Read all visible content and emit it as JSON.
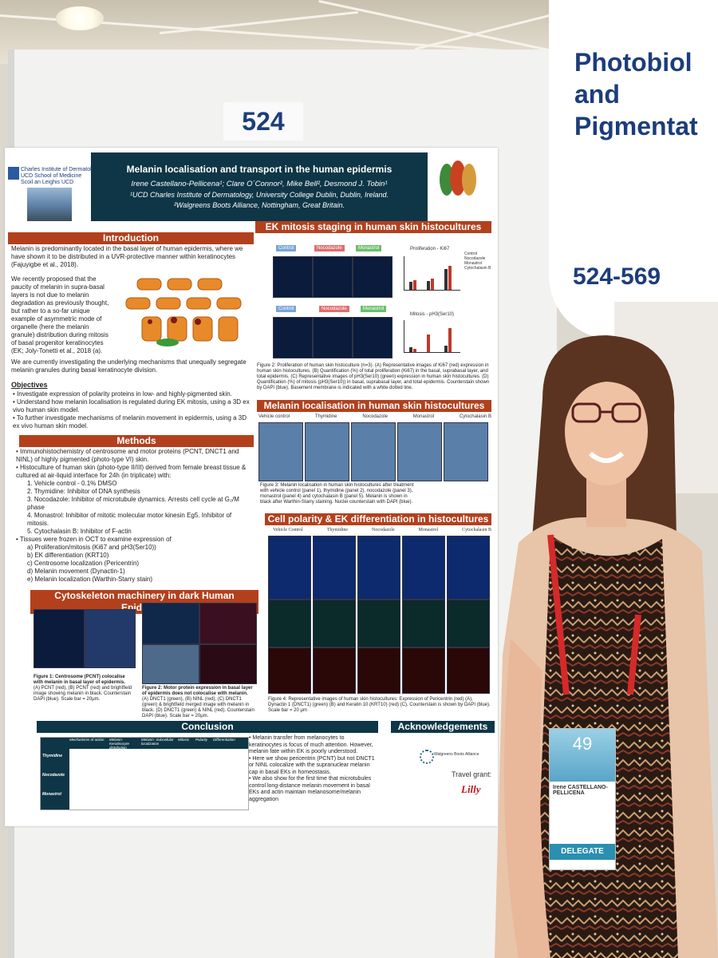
{
  "board_number": "524",
  "sign": {
    "line1": "Photobiol",
    "line2": "and",
    "line3": "Pigmentat",
    "range": "524-569"
  },
  "poster": {
    "logo_line1": "Charles Institute of Dermatology",
    "logo_line2": "UCD School of Medicine",
    "logo_line3": "Scoil an Leighis UCD",
    "title": "Melanin localisation and transport in the human epidermis",
    "authors": "Irene Castellano-Pellicena¹; Clare O´Connor², Mike Bell², Desmond J. Tobin¹",
    "affil1": "¹UCD Charles Institute of Dermatology, University College Dublin, Dublin, Ireland.",
    "affil2": "²Walgreens Boots Alliance, Nottingham, Great Britain.",
    "intro_h": "Introduction",
    "intro_p1": "Melanin is predominantly located in the basal layer of human epidermis, where we have shown it to be distributed in a UVR-protective manner within keratinocytes (Fajuyigbe et al., 2018).",
    "intro_p2": "We recently proposed that the paucity of melanin in supra-basal layers is not due to melanin degradation as previously thought, but rather to a so-far unique example of asymmetric mode of organelle (here the melanin granule) distribution during mitosis of basal progenitor keratinocytes (EK; Joly-Tonetti et al., 2018 (a).",
    "intro_p3": "We are currently investigating the underlying mechanisms that unequally segregate melanin granules during basal keratinocyte division.",
    "objectives_h": "Objectives",
    "obj1": "Investigate expression of polarity proteins in low- and highly-pigmented skin.",
    "obj2": "Understand how melanin localisation is regulated during EK mitosis, using a 3D ex vivo human skin model.",
    "obj3": "To further investigate mechanisms of melanin movement in epidermis, using a 3D ex vivo human skin model.",
    "methods_h": "Methods",
    "m1": "Immunohistochemistry of centrosome and motor proteins (PCNT, DNCT1 and NINL) of highly pigmented (photo-type VI) skin.",
    "m2": "Histoculture of human skin (photo-type II/III) derived from female breast tissue & cultured at air-liquid interface for 24h (in triplicate) with:",
    "m2_1": "1.   Vehicle control - 0.1% DMSO",
    "m2_2": "2.   Thymidine: Inhibitor of DNA synthesis",
    "m2_3": "3.   Nocodazole: Inhibitor of microtubule dynamics. Arrests cell cycle at G₂/M phase",
    "m2_4": "4.   Monastrol: Inhibitor of mitotic molecular motor kinesin Eg5. Inhibitor of mitosis.",
    "m2_5": "5.   Cytochalasin B: Inhibitor of F-actin",
    "m3": "Tissues were frozen in OCT to examine expression of",
    "m3_a": "a)   Proliferation/mitosis (Ki67 and pH3(Ser10))",
    "m3_b": "b)   EK differentiation (KRT10)",
    "m3_c": "c)   Centrosome localization (Pericentrin)",
    "m3_d": "d)   Melanin movement (Dynactin-1)",
    "m3_e": "e)   Melanin localization (Warthin-Starry stain)",
    "cyto_h": "Cytoskeleton machinery in dark Human Epidermis",
    "fig1": "Figure 1: Centrosome (PCNT) colocalise with melanin in basal layer of epidermis.",
    "fig1b": "(A) PCNT (red), (B) PCNT (red) and brightfield image showing melanin in black. Counterstain DAPI (blue). Scale bar = 20μm.",
    "fig2": "Figure 2: Motor protein expression in basal layer of epidermis does not colocalise with melanin.",
    "fig2b": "(A) DNCT1 (green), (B) NINL (red), (C) DNCT1 (green) & brightfield merged image with melanin in black. (D) DNCT1 (green) & NINL (red). Counterstain DAPI (blue). Scale bar = 20μm.",
    "ek_h": "EK mitosis staging in human skin histocultures",
    "ek_labels": [
      "Control",
      "Nocodazole",
      "Monastrol"
    ],
    "ek_caption": "Figure 2: Proliferation of human skin histoculture (n=3). (A) Representative images of Ki67 (red) expression in human skin histocultures. (B) Quantification (%) of total proliferation (Ki67) in the basal, suprabasal layer, and total epidermis. (C) Representative images of pH3(Ser10) (green) expression in human skin histocultures. (D) Quantification (%) of mitosis (pH3(Ser10)) in basal, suprabasal layer, and total epidermis. Counterstain shown by DAPI (blue). Basement membrane is indicated with a white dotted line.",
    "chart_b_title": "Proliferation - Ki67",
    "chart_d_title": "Mitosis - pH3(Ser10)",
    "legend": [
      "Control",
      "Nocodazole",
      "Monastrol",
      "Cytochalasin B"
    ],
    "ml_h": "Melanin localisation in human skin histocultures",
    "ml_labels": [
      "Vehicle control",
      "Thymidine",
      "Nocodazole",
      "Monastrol",
      "Cytochalasin B"
    ],
    "ml_caption": "Figure 3: Melanin localisation in human skin histocultures after treatment with vehicle control (panel 1), thymidine (panel 2), nocodazole (panel 3), monastrol (panel 4) and cytochalasin B (panel 5). Melanin is shown in black after Warthin-Starry staining. Nuclei counterstain with DAPI (blue).",
    "cp_h": "Cell polarity & EK differentiation in histocultures",
    "cp_labels": [
      "Vehicle Control",
      "Thymidine",
      "Nocodazole",
      "Monastrol",
      "Cytochalasin B"
    ],
    "cp_caption": "Figure 4: Representative images of human skin histocultures: Expression of Pericentrin (red) (A), Dynactin 1 (DNCT1) (green) (B) and Keratin 10 (KRT10) (red) (C). Counterstain is shown by DAPI (blue). Scale bar = 20 μm",
    "concl_h": "Conclusion",
    "concl_table_head": [
      "Mechanisms of action",
      "Melanin-Keratinocyte distribution",
      "Melanin- Subcellular localization",
      "Mitosis",
      "Polarity",
      "Differentiation"
    ],
    "concl_rows": [
      "Thymidine",
      "Nocodazole",
      "Monastrol"
    ],
    "concl_b1": "Melanin transfer from melanocytes to keratinocytes is focus of much attention. However, melanin fate within EK is poorly understood.",
    "concl_b2": "Here we show pericentrin (PCNT) but not DNCT1 or NINL colocalize with the supranuclear melanin cap in basal EKs in homeostasis.",
    "concl_b3": "We also show for the first time that microtubules control long-distance melanin movement in basal EKs and actin maintain melanosome/melanin aggregation",
    "ack_h": "Acknowledgements",
    "ack_company": "Walgreens Boots Alliance",
    "travel": "Travel grant:",
    "lilly": "Lilly"
  },
  "badge": {
    "number": "49",
    "name": "Irene CASTELLANO-PELLICENA",
    "role": "DELEGATE"
  },
  "colors": {
    "accent_red": "#b3401d",
    "dark_teal": "#0e3646",
    "sign_blue": "#1c3d7a"
  }
}
